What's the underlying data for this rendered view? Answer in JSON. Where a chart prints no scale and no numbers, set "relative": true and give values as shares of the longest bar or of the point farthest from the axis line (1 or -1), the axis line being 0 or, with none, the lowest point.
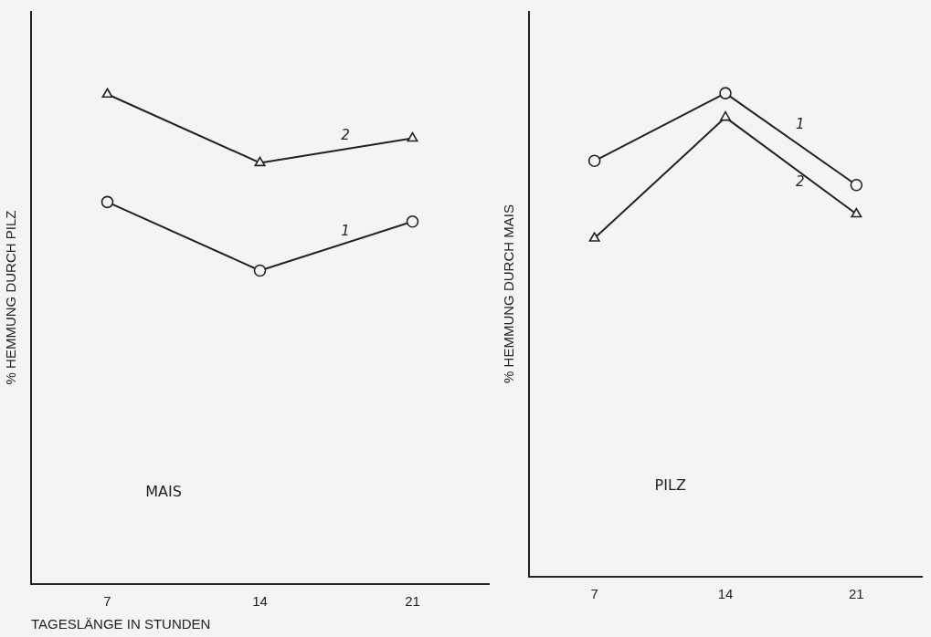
{
  "chart_data": [
    {
      "type": "line",
      "relative": true,
      "ylabel": "% HEMMUNG DURCH PILZ",
      "xlabel": "TAGESLÄNGE IN STUNDEN",
      "categories": [
        "7",
        "14",
        "21"
      ],
      "annotations": [
        "MAIS"
      ],
      "legend": false,
      "grid": false,
      "series": [
        {
          "name": "1",
          "color": "#222222",
          "marker": "circle",
          "values": [
            0.78,
            0.64,
            0.74
          ]
        },
        {
          "name": "2",
          "color": "#222222",
          "marker": "triangle",
          "values": [
            1,
            0.86,
            0.91
          ]
        }
      ]
    },
    {
      "type": "line",
      "relative": true,
      "ylabel": "% HEMMUNG DURCH MAIS",
      "categories": [
        "7",
        "14",
        "21"
      ],
      "annotations": [
        "PILZ"
      ],
      "legend": false,
      "grid": false,
      "series": [
        {
          "name": "1",
          "color": "#222222",
          "marker": "circle",
          "values": [
            0.86,
            1,
            0.81
          ]
        },
        {
          "name": "2",
          "color": "#222222",
          "marker": "triangle",
          "values": [
            0.7,
            0.95,
            0.75
          ]
        }
      ]
    }
  ]
}
